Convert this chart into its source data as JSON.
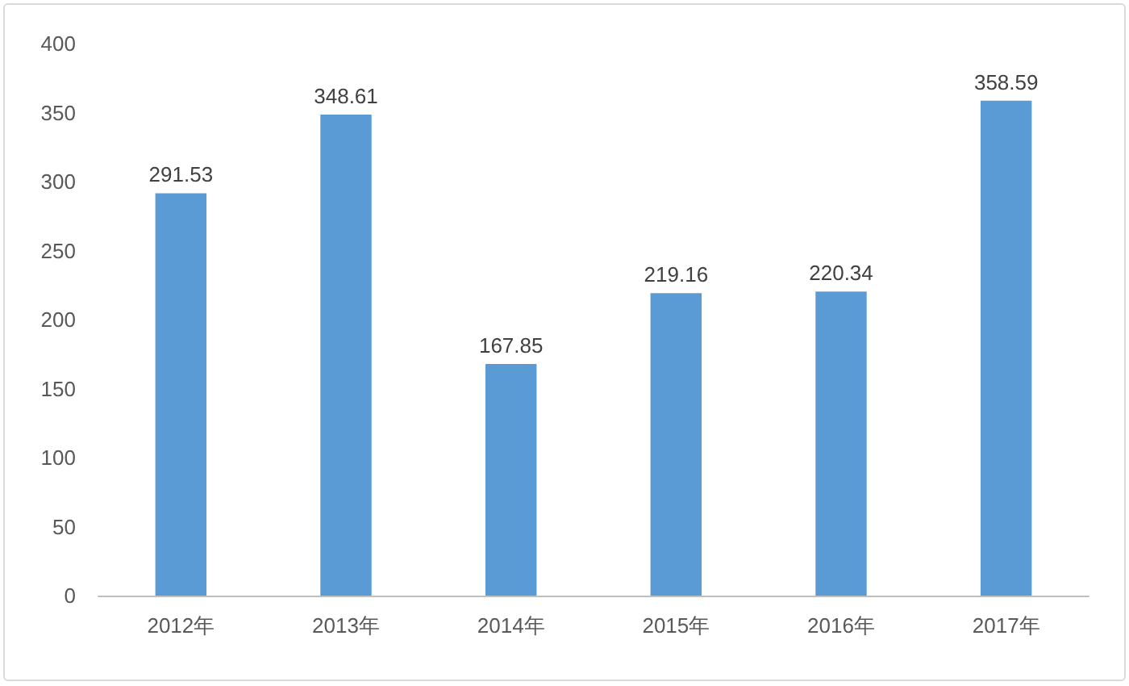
{
  "chart_data": {
    "type": "bar",
    "categories": [
      "2012年",
      "2013年",
      "2014年",
      "2015年",
      "2016年",
      "2017年"
    ],
    "values": [
      291.53,
      348.61,
      167.85,
      219.16,
      220.34,
      358.59
    ],
    "color": "#5b9bd5",
    "ylim": [
      0,
      400
    ],
    "yticks": [
      0,
      50,
      100,
      150,
      200,
      250,
      300,
      350,
      400
    ],
    "grid": false,
    "data_labels": true
  }
}
